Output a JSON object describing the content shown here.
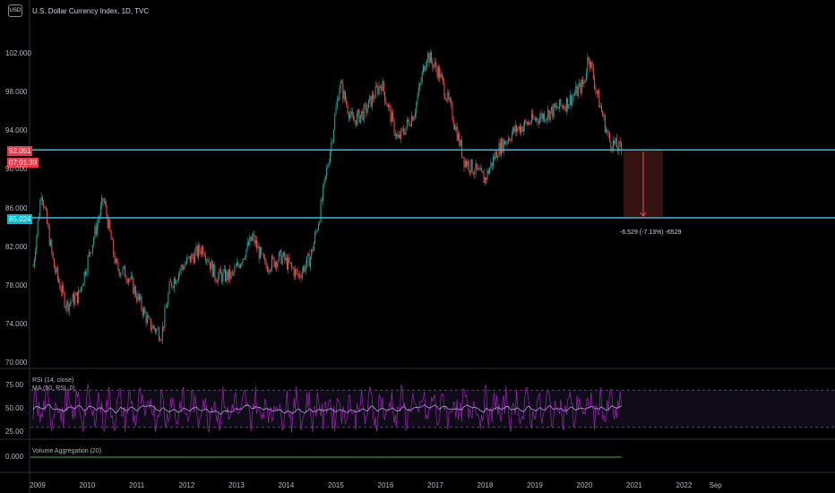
{
  "header": {
    "symbol_badge": "USD",
    "title": "U.S. Dollar Currency Index, 1D, TVC"
  },
  "price_badges": {
    "current": "92.051",
    "countdown": "07:01:39",
    "support": "85.024"
  },
  "measure_label": "-6.529 (-7.13%) -6529",
  "indicators": {
    "rsi_label": "RSI (14, close)",
    "ma_label": "MA (50, RSI, 0)",
    "volume_label": "Volume Aggregation (20)"
  },
  "colors": {
    "up": "#26a69a",
    "down": "#ef5350",
    "level": "#26c6da",
    "rsi": "#9c27b0",
    "rsi_ma": "#7e57c2",
    "volume": "#4caf50",
    "current_badge": "#f23645",
    "support_badge": "#00bcd4"
  },
  "chart_data": [
    {
      "type": "line",
      "title": "U.S. Dollar Currency Index",
      "y_ticks": [
        "102.000",
        "98.000",
        "94.000",
        "90.000",
        "86.000",
        "82.000",
        "78.000",
        "74.000",
        "70.000"
      ],
      "x_ticks": [
        "2009",
        "2010",
        "2011",
        "2012",
        "2013",
        "2014",
        "2015",
        "2016",
        "2017",
        "2018",
        "2019",
        "2020",
        "2021",
        "2022",
        "Sep"
      ],
      "ylim": [
        70,
        106
      ],
      "series": [
        {
          "x": [
            "2009-01",
            "2009-03",
            "2009-06",
            "2009-09",
            "2009-12",
            "2010-03",
            "2010-06",
            "2010-09",
            "2010-12",
            "2011-03",
            "2011-05",
            "2011-08",
            "2011-10",
            "2012-01",
            "2012-06",
            "2012-09",
            "2013-01",
            "2013-06",
            "2013-09",
            "2014-01",
            "2014-05",
            "2014-08",
            "2014-10",
            "2015-01",
            "2015-03",
            "2015-06",
            "2015-09",
            "2016-01",
            "2016-05",
            "2016-09",
            "2016-12",
            "2017-03",
            "2017-06",
            "2017-09",
            "2018-02",
            "2018-05",
            "2018-09",
            "2019-01",
            "2019-06",
            "2019-10",
            "2020-02",
            "2020-03",
            "2020-05",
            "2020-08",
            "2020-11"
          ],
          "y": [
            80,
            88,
            80,
            76,
            77,
            82,
            87,
            80,
            79,
            76,
            74,
            73,
            78,
            80,
            82,
            79,
            79,
            83,
            80,
            81,
            79,
            81,
            85,
            93,
            99,
            95,
            96,
            99,
            93,
            96,
            102,
            100,
            96,
            91,
            89,
            92,
            94,
            95,
            96,
            97,
            99,
            102,
            98,
            93,
            92
          ]
        }
      ],
      "horizontal_levels": [
        92.051,
        85.024
      ]
    },
    {
      "type": "line",
      "title": "RSI (14, close)",
      "y_ticks": [
        "75.00",
        "50.00",
        "25.00"
      ],
      "bands": [
        70,
        30
      ],
      "ylim": [
        15,
        85
      ]
    },
    {
      "type": "line",
      "title": "Volume Aggregation (20)",
      "y_ticks": [
        "0.000"
      ],
      "values": [
        0
      ]
    }
  ]
}
